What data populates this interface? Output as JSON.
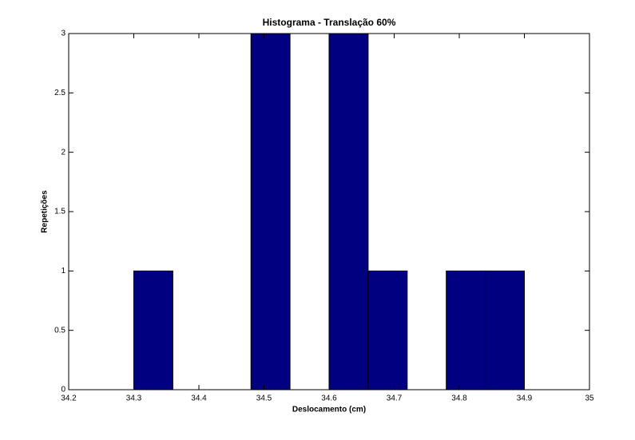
{
  "chart_data": {
    "type": "histogram",
    "title": "Histograma - Translação 60%",
    "xlabel": "Deslocamento (cm)",
    "ylabel": "Repetições",
    "bins": [
      34.3,
      34.36,
      34.42,
      34.48,
      34.54,
      34.6,
      34.66,
      34.72,
      34.78,
      34.84,
      34.9
    ],
    "values": [
      1,
      0,
      0,
      3,
      0,
      3,
      1,
      0,
      1,
      1
    ],
    "color": "#000080",
    "xlim": [
      34.2,
      35
    ],
    "xticks": [
      34.2,
      34.3,
      34.4,
      34.5,
      34.6,
      34.7,
      34.8,
      34.9,
      35
    ],
    "ylim": [
      0,
      3
    ],
    "yticks": [
      0,
      0.5,
      1,
      1.5,
      2,
      2.5,
      3
    ]
  }
}
